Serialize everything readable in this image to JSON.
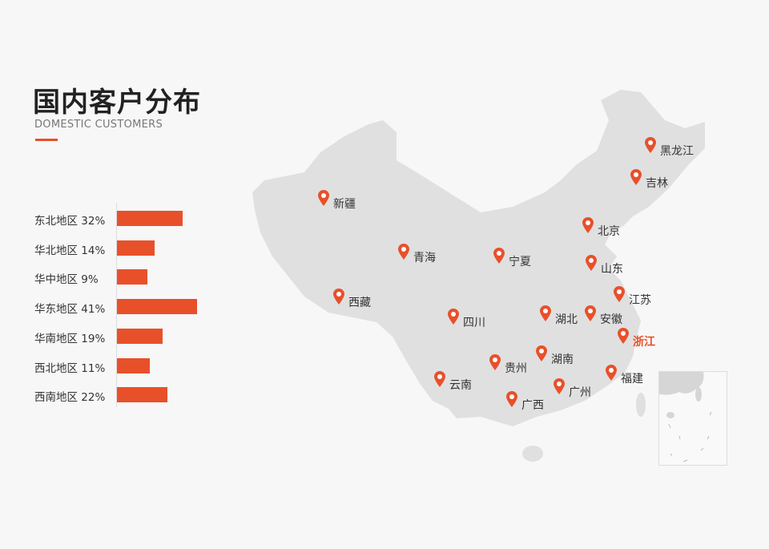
{
  "header": {
    "title": "国内客户分布",
    "subtitle": "DOMESTIC CUSTOMERS"
  },
  "colors": {
    "accent": "#e8502a",
    "map_fill": "#e0e0e0"
  },
  "chart_data": {
    "type": "bar",
    "orientation": "horizontal",
    "categories": [
      "东北地区",
      "华北地区",
      "华中地区",
      "华东地区",
      "华南地区",
      "西北地区",
      "西南地区"
    ],
    "values": [
      32,
      14,
      9,
      41,
      19,
      11,
      22
    ],
    "labels": [
      "东北地区 32%",
      "华北地区 14%",
      "华中地区 9%",
      "华东地区 41%",
      "华南地区 19%",
      "西北地区 11%",
      "西南地区 22%"
    ],
    "unit": "%"
  },
  "map": {
    "pins": [
      {
        "name": "黑龙江"
      },
      {
        "name": "吉林"
      },
      {
        "name": "新疆"
      },
      {
        "name": "北京"
      },
      {
        "name": "青海"
      },
      {
        "name": "宁夏"
      },
      {
        "name": "山东"
      },
      {
        "name": "江苏"
      },
      {
        "name": "西藏"
      },
      {
        "name": "四川"
      },
      {
        "name": "湖北"
      },
      {
        "name": "安徽"
      },
      {
        "name": "浙江",
        "highlight": true
      },
      {
        "name": "湖南"
      },
      {
        "name": "贵州"
      },
      {
        "name": "福建"
      },
      {
        "name": "云南"
      },
      {
        "name": "广州"
      },
      {
        "name": "广西"
      }
    ]
  }
}
